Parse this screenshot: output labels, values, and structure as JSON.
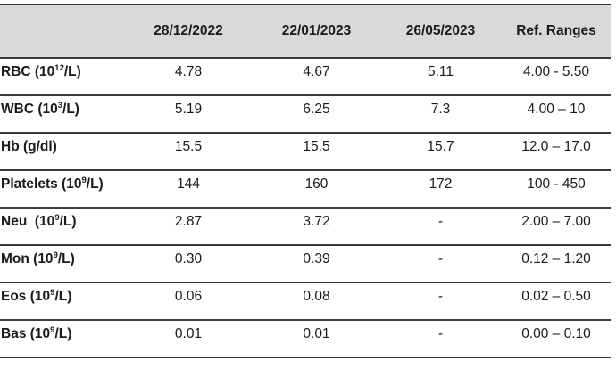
{
  "colors": {
    "header_fill": "#d9d9d9",
    "border": "#3b3b3b",
    "text": "#1a1a1a"
  },
  "table": {
    "columns": [
      "",
      "28/12/2022",
      "22/01/2023",
      "26/05/2023",
      "Ref. Ranges"
    ],
    "rows": [
      {
        "param": {
          "pre": "RBC (10",
          "sup": "12",
          "post": "/L)"
        },
        "values": [
          "4.78",
          "4.67",
          "5.11",
          "4.00 - 5.50"
        ]
      },
      {
        "param": {
          "pre": "WBC (10",
          "sup": "3",
          "post": "/L)"
        },
        "values": [
          "5.19",
          "6.25",
          "7.3",
          "4.00 – 10"
        ]
      },
      {
        "param": {
          "pre": "Hb (g/dl)",
          "sup": "",
          "post": ""
        },
        "values": [
          "15.5",
          "15.5",
          "15.7",
          "12.0 – 17.0"
        ]
      },
      {
        "param": {
          "pre": "Platelets (10",
          "sup": "9",
          "post": "/L)"
        },
        "values": [
          "144",
          "160",
          "172",
          "100 - 450"
        ]
      },
      {
        "param": {
          "pre": "Neu  (10",
          "sup": "9",
          "post": "/L)"
        },
        "values": [
          "2.87",
          "3.72",
          "-",
          "2.00 – 7.00"
        ]
      },
      {
        "param": {
          "pre": "Mon (10",
          "sup": "9",
          "post": "/L)"
        },
        "values": [
          "0.30",
          "0.39",
          "-",
          "0.12 – 1.20"
        ]
      },
      {
        "param": {
          "pre": "Eos (10",
          "sup": "9",
          "post": "/L)"
        },
        "values": [
          "0.06",
          "0.08",
          "-",
          "0.02 – 0.50"
        ]
      },
      {
        "param": {
          "pre": "Bas (10",
          "sup": "9",
          "post": "/L)"
        },
        "values": [
          "0.01",
          "0.01",
          "-",
          "0.00 – 0.10"
        ]
      }
    ]
  }
}
